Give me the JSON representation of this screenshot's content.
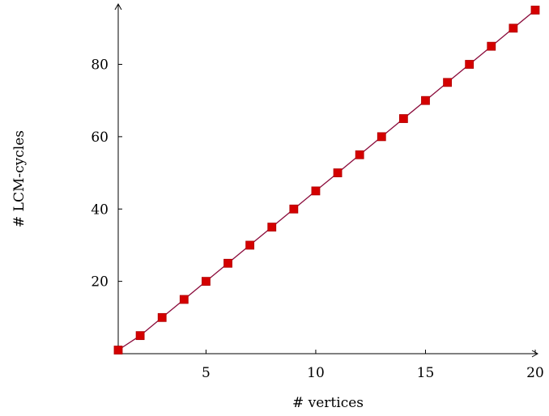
{
  "chart_data": {
    "type": "line",
    "title": "",
    "xlabel": "# vertices",
    "ylabel": "# LCM-cycles",
    "xlim": [
      1,
      20
    ],
    "ylim": [
      0,
      96
    ],
    "xticks": [
      5,
      10,
      15,
      20
    ],
    "yticks": [
      20,
      40,
      60,
      80
    ],
    "grid": false,
    "marker": "square",
    "colors": {
      "line": "#8a0a3a",
      "marker": "#d40000",
      "marker_edge": "#b00000",
      "axis": "#000000"
    },
    "series": [
      {
        "x": [
          1,
          2,
          3,
          4,
          5,
          6,
          7,
          8,
          9,
          10,
          11,
          12,
          13,
          14,
          15,
          16,
          17,
          18,
          19,
          20
        ],
        "values": [
          1,
          5,
          10,
          15,
          20,
          25,
          30,
          35,
          40,
          45,
          50,
          55,
          60,
          65,
          70,
          75,
          80,
          85,
          90,
          95
        ]
      }
    ]
  }
}
